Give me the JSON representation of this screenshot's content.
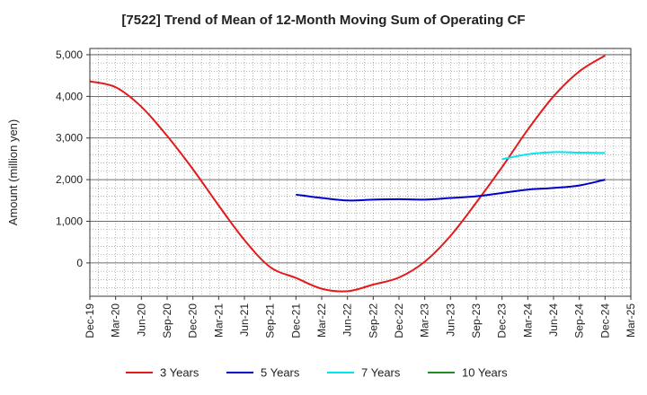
{
  "chart_data": {
    "type": "line",
    "title": "[7522]  Trend of Mean of 12-Month Moving Sum of Operating CF",
    "xlabel": "",
    "ylabel": "Amount (million yen)",
    "ylim": [
      -800,
      5150
    ],
    "yticks": [
      0,
      1000,
      2000,
      3000,
      4000,
      5000
    ],
    "ytick_labels": [
      "0",
      "1,000",
      "2,000",
      "3,000",
      "4,000",
      "5,000"
    ],
    "x_categories": [
      "Dec-19",
      "Mar-20",
      "Jun-20",
      "Sep-20",
      "Dec-20",
      "Mar-21",
      "Jun-21",
      "Sep-21",
      "Dec-21",
      "Mar-22",
      "Jun-22",
      "Sep-22",
      "Dec-22",
      "Mar-23",
      "Jun-23",
      "Sep-23",
      "Dec-23",
      "Mar-24",
      "Jun-24",
      "Sep-24",
      "Dec-24",
      "Mar-25"
    ],
    "grid": true,
    "legend_position": "bottom",
    "series": [
      {
        "name": "3 Years",
        "color": "#e31a1c",
        "values": [
          4360,
          4220,
          3750,
          3050,
          2250,
          1380,
          550,
          -100,
          -360,
          -620,
          -680,
          -520,
          -350,
          30,
          650,
          1450,
          2300,
          3200,
          4000,
          4600,
          4980
        ]
      },
      {
        "name": "5 Years",
        "color": "#0000cc",
        "start_index": 8,
        "values": [
          1640,
          1560,
          1500,
          1520,
          1530,
          1520,
          1560,
          1600,
          1680,
          1760,
          1800,
          1860,
          2000
        ]
      },
      {
        "name": "7 Years",
        "color": "#00e5ee",
        "start_index": 16,
        "values": [
          2490,
          2610,
          2660,
          2650,
          2640
        ]
      },
      {
        "name": "10 Years",
        "color": "#228b22",
        "start_index": 0,
        "values": []
      }
    ]
  }
}
